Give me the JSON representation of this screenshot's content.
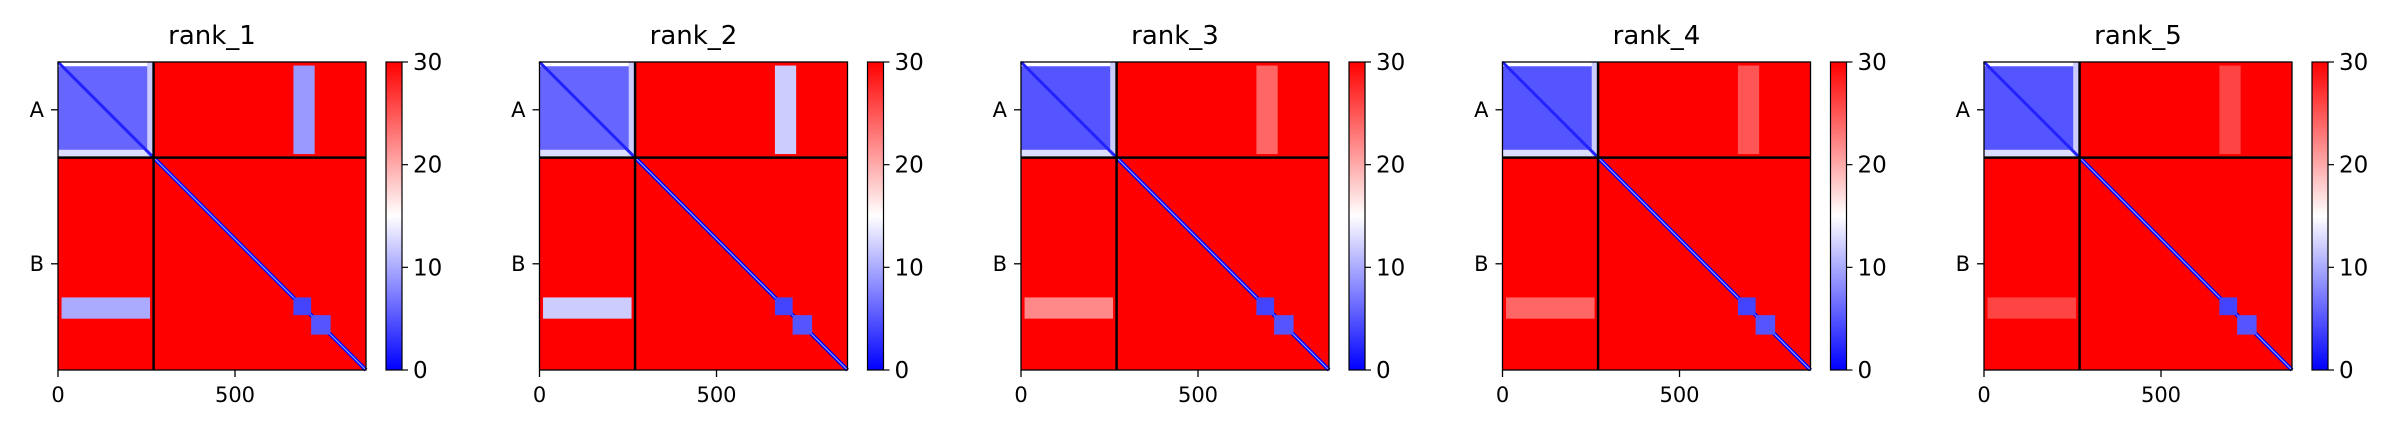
{
  "colors": {
    "low": "#0000ff",
    "mid": "#ffffff",
    "high": "#ff0000",
    "frame": "#000000"
  },
  "chart_data": {
    "type": "heatmap",
    "description_type": "predicted aligned error matrices",
    "colormap": "bwr",
    "value_range": [
      0,
      30
    ],
    "colorbar_ticks": [
      "0",
      "10",
      "20",
      "30"
    ],
    "axis_range": [
      0,
      870
    ],
    "x_ticks": [
      {
        "value": 0,
        "label": "0"
      },
      {
        "value": 500,
        "label": "500"
      }
    ],
    "chain_boundary": 270,
    "chains": [
      {
        "label": "A",
        "center": 135
      },
      {
        "label": "B",
        "center": 570
      }
    ],
    "panels": [
      {
        "title": "rank_1",
        "a_core": 6,
        "stripe_b_on_a": 9,
        "stripe_a_on_b": 10,
        "domains": [
          {
            "start": 665,
            "end": 715,
            "value": 4
          },
          {
            "start": 715,
            "end": 770,
            "value": 5
          }
        ]
      },
      {
        "title": "rank_2",
        "a_core": 6,
        "stripe_b_on_a": 12,
        "stripe_a_on_b": 12,
        "domains": [
          {
            "start": 665,
            "end": 715,
            "value": 4
          },
          {
            "start": 715,
            "end": 770,
            "value": 5
          }
        ]
      },
      {
        "title": "rank_3",
        "a_core": 5,
        "stripe_b_on_a": 24,
        "stripe_a_on_b": 22,
        "domains": [
          {
            "start": 665,
            "end": 715,
            "value": 4
          },
          {
            "start": 715,
            "end": 770,
            "value": 5
          }
        ]
      },
      {
        "title": "rank_4",
        "a_core": 5,
        "stripe_b_on_a": 25,
        "stripe_a_on_b": 24,
        "domains": [
          {
            "start": 665,
            "end": 715,
            "value": 4
          },
          {
            "start": 715,
            "end": 770,
            "value": 5
          }
        ]
      },
      {
        "title": "rank_5",
        "a_core": 5,
        "stripe_b_on_a": 26,
        "stripe_a_on_b": 26,
        "domains": [
          {
            "start": 665,
            "end": 715,
            "value": 4
          },
          {
            "start": 715,
            "end": 770,
            "value": 5
          }
        ]
      }
    ]
  }
}
